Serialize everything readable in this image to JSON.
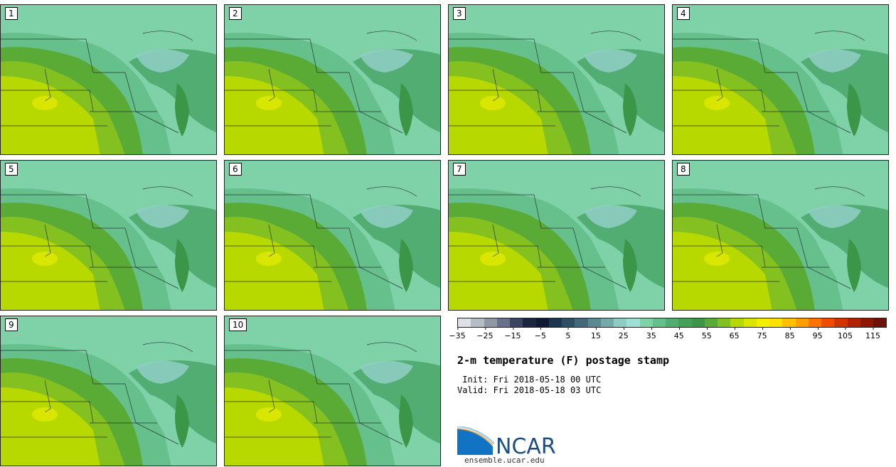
{
  "panels": [
    {
      "label": "1"
    },
    {
      "label": "2"
    },
    {
      "label": "3"
    },
    {
      "label": "4"
    },
    {
      "label": "5"
    },
    {
      "label": "6"
    },
    {
      "label": "7"
    },
    {
      "label": "8"
    },
    {
      "label": "9"
    },
    {
      "label": "10"
    }
  ],
  "colorbar": {
    "colors": [
      "#dde0e6",
      "#b6bcc6",
      "#8f97a4",
      "#68718a",
      "#3a4560",
      "#1b2540",
      "#0d1a30",
      "#1f3650",
      "#2f4e64",
      "#43697b",
      "#5a8a92",
      "#74aaa9",
      "#8ecdc1",
      "#9fe0d4",
      "#7fd1a8",
      "#66c08c",
      "#52ad72",
      "#45a05a",
      "#3b9647",
      "#5aab35",
      "#85c021",
      "#b7d900",
      "#d8e600",
      "#f4f000",
      "#ffe100",
      "#ffc000",
      "#ff9e00",
      "#ff7200",
      "#f04c00",
      "#d03400",
      "#b02200",
      "#8c1800",
      "#6c1208"
    ],
    "ticks": [
      "−35",
      "−25",
      "−15",
      "−5",
      "5",
      "15",
      "25",
      "35",
      "45",
      "55",
      "65",
      "75",
      "85",
      "95",
      "105",
      "115"
    ]
  },
  "title": "2-m temperature (F) postage stamp",
  "init": " Init: Fri 2018-05-18 00 UTC",
  "valid": "Valid: Fri 2018-05-18 03 UTC",
  "logo": {
    "text": "NCAR",
    "site": "ensemble.ucar.edu"
  }
}
